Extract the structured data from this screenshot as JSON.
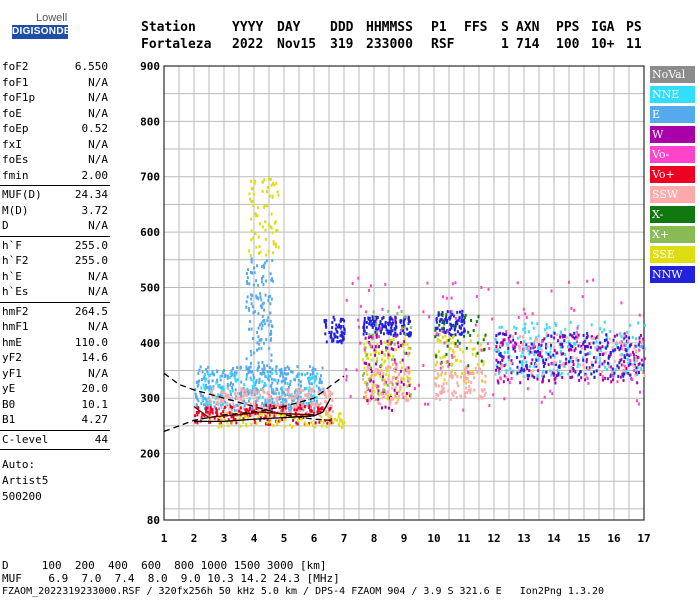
{
  "logo": {
    "top": "Lowell",
    "main": "DIGISONDE"
  },
  "header": {
    "row1": [
      "Station",
      "YYYY",
      "DAY",
      "DDD",
      "HHMMSS",
      "P1",
      "FFS",
      "S",
      "AXN",
      "PPS",
      "IGA",
      "PS"
    ],
    "row2": [
      "Fortaleza",
      "2022",
      "Nov15",
      "319",
      "233000",
      "RSF",
      "",
      "1",
      "714",
      "100",
      "10+",
      "11"
    ]
  },
  "params": {
    "group1": [
      {
        "name": "foF2",
        "value": "6.550"
      },
      {
        "name": "foF1",
        "value": "N/A"
      },
      {
        "name": "foF1p",
        "value": "N/A"
      },
      {
        "name": "foE",
        "value": "N/A"
      },
      {
        "name": "foEp",
        "value": "0.52"
      },
      {
        "name": "fxI",
        "value": "N/A"
      },
      {
        "name": "foEs",
        "value": "N/A"
      },
      {
        "name": "fmin",
        "value": "2.00"
      }
    ],
    "group2": [
      {
        "name": "MUF(D)",
        "value": "24.34"
      },
      {
        "name": "M(D)",
        "value": "3.72"
      },
      {
        "name": "D",
        "value": "N/A"
      }
    ],
    "group3": [
      {
        "name": "h`F",
        "value": "255.0"
      },
      {
        "name": "h`F2",
        "value": "255.0"
      },
      {
        "name": "h`E",
        "value": "N/A"
      },
      {
        "name": "h`Es",
        "value": "N/A"
      }
    ],
    "group4": [
      {
        "name": "hmF2",
        "value": "264.5"
      },
      {
        "name": "hmF1",
        "value": "N/A"
      },
      {
        "name": "hmE",
        "value": "110.0"
      },
      {
        "name": "yF2",
        "value": "14.6"
      },
      {
        "name": "yF1",
        "value": "N/A"
      },
      {
        "name": "yE",
        "value": "20.0"
      },
      {
        "name": "B0",
        "value": "10.1"
      },
      {
        "name": "B1",
        "value": "4.27"
      }
    ],
    "group5": [
      {
        "name": "C-level",
        "value": "44"
      }
    ],
    "auto": [
      "Auto:",
      "Artist5",
      "500200"
    ]
  },
  "legend": [
    {
      "label": "NoVal",
      "color": "#8c8c8c"
    },
    {
      "label": "NNE",
      "color": "#33ddff"
    },
    {
      "label": "E",
      "color": "#55aaee"
    },
    {
      "label": "W",
      "color": "#aa00aa"
    },
    {
      "label": "Vo-",
      "color": "#ff44cc"
    },
    {
      "label": "Vo+",
      "color": "#ee0022"
    },
    {
      "label": "SSW",
      "color": "#ffaaaa"
    },
    {
      "label": "X-",
      "color": "#117711"
    },
    {
      "label": "X+",
      "color": "#88bb55"
    },
    {
      "label": "SSE",
      "color": "#dddd11"
    },
    {
      "label": "NNW",
      "color": "#2222dd"
    }
  ],
  "chart_data": {
    "type": "scatter",
    "xlim": [
      1,
      17
    ],
    "ylim": [
      80,
      900
    ],
    "x_ticks": [
      "1",
      "2",
      "3",
      "4",
      "5",
      "6",
      "7",
      "8",
      "9",
      "10",
      "11",
      "12",
      "13",
      "14",
      "15",
      "16",
      "17"
    ],
    "y_ticks": [
      "80",
      "200",
      "300",
      "400",
      "500",
      "600",
      "700",
      "800",
      "900"
    ],
    "y_tick_values": [
      80,
      200,
      300,
      400,
      500,
      600,
      700,
      800,
      900
    ],
    "grid": true,
    "clusters": [
      {
        "name": "E",
        "xmin": 2.0,
        "xmax": 6.3,
        "ymin": 280,
        "ymax": 360,
        "color": "#55aaee",
        "n": 400
      },
      {
        "name": "E",
        "xmin": 3.7,
        "xmax": 4.6,
        "ymin": 350,
        "ymax": 560,
        "color": "#55aaee",
        "n": 120
      },
      {
        "name": "NNE",
        "xmin": 2.2,
        "xmax": 6.2,
        "ymin": 290,
        "ymax": 350,
        "color": "#33ddff",
        "n": 120
      },
      {
        "name": "SSW",
        "xmin": 2.4,
        "xmax": 6.6,
        "ymin": 270,
        "ymax": 320,
        "color": "#ffaaaa",
        "n": 260
      },
      {
        "name": "Vo+",
        "xmin": 2.0,
        "xmax": 6.6,
        "ymin": 255,
        "ymax": 290,
        "color": "#ee0022",
        "n": 160
      },
      {
        "name": "SSE",
        "xmin": 3.8,
        "xmax": 4.8,
        "ymin": 560,
        "ymax": 700,
        "color": "#dddd11",
        "n": 70
      },
      {
        "name": "SSE",
        "xmin": 2.5,
        "xmax": 7.0,
        "ymin": 250,
        "ymax": 275,
        "color": "#dddd11",
        "n": 90
      },
      {
        "name": "NNW",
        "xmin": 6.3,
        "xmax": 7.0,
        "ymin": 400,
        "ymax": 450,
        "color": "#2222dd",
        "n": 60
      },
      {
        "name": "NNW",
        "xmin": 7.6,
        "xmax": 9.2,
        "ymin": 415,
        "ymax": 450,
        "color": "#2222dd",
        "n": 140
      },
      {
        "name": "SSE",
        "xmin": 7.6,
        "xmax": 9.2,
        "ymin": 300,
        "ymax": 410,
        "color": "#dddd11",
        "n": 120
      },
      {
        "name": "W",
        "xmin": 7.6,
        "xmax": 9.2,
        "ymin": 280,
        "ymax": 420,
        "color": "#aa00aa",
        "n": 80
      },
      {
        "name": "SSW",
        "xmin": 7.6,
        "xmax": 9.2,
        "ymin": 290,
        "ymax": 360,
        "color": "#ffaaaa",
        "n": 90
      },
      {
        "name": "X+",
        "xmin": 7.6,
        "xmax": 9.2,
        "ymin": 300,
        "ymax": 460,
        "color": "#88bb55",
        "n": 40
      },
      {
        "name": "NNW",
        "xmin": 10.0,
        "xmax": 11.0,
        "ymin": 415,
        "ymax": 460,
        "color": "#2222dd",
        "n": 90
      },
      {
        "name": "SSE",
        "xmin": 10.0,
        "xmax": 11.7,
        "ymin": 330,
        "ymax": 420,
        "color": "#dddd11",
        "n": 70
      },
      {
        "name": "SSW",
        "xmin": 10.0,
        "xmax": 11.7,
        "ymin": 300,
        "ymax": 360,
        "color": "#ffaaaa",
        "n": 90
      },
      {
        "name": "X-",
        "xmin": 10.0,
        "xmax": 11.7,
        "ymin": 360,
        "ymax": 460,
        "color": "#117711",
        "n": 40
      },
      {
        "name": "NNE",
        "xmin": 12.0,
        "xmax": 17.0,
        "ymin": 340,
        "ymax": 440,
        "color": "#33ddff",
        "n": 220
      },
      {
        "name": "W",
        "xmin": 12.0,
        "xmax": 17.0,
        "ymin": 330,
        "ymax": 420,
        "color": "#aa00aa",
        "n": 200
      },
      {
        "name": "NNW",
        "xmin": 12.0,
        "xmax": 17.0,
        "ymin": 340,
        "ymax": 420,
        "color": "#2222dd",
        "n": 150
      },
      {
        "name": "SSW",
        "xmin": 12.0,
        "xmax": 17.0,
        "ymin": 340,
        "ymax": 420,
        "color": "#ffaaaa",
        "n": 90
      },
      {
        "name": "Vo-",
        "xmin": 7.0,
        "xmax": 17.0,
        "ymin": 280,
        "ymax": 520,
        "color": "#ff44cc",
        "n": 120
      }
    ],
    "traces": [
      {
        "style": "dashed",
        "color": "#000000",
        "points": [
          [
            1.0,
            240
          ],
          [
            1.5,
            250
          ],
          [
            2.0,
            260
          ],
          [
            3.0,
            270
          ],
          [
            4.0,
            275
          ],
          [
            5.0,
            285
          ],
          [
            6.0,
            300
          ],
          [
            6.5,
            320
          ],
          [
            7.0,
            340
          ]
        ]
      },
      {
        "style": "dashed",
        "color": "#000000",
        "points": [
          [
            1.0,
            345
          ],
          [
            1.5,
            325
          ],
          [
            2.0,
            315
          ],
          [
            3.0,
            300
          ],
          [
            4.0,
            285
          ],
          [
            5.0,
            270
          ],
          [
            6.0,
            262
          ],
          [
            6.55,
            260
          ]
        ]
      },
      {
        "style": "solid",
        "color": "#000000",
        "points": [
          [
            2.0,
            258
          ],
          [
            3.0,
            258
          ],
          [
            4.0,
            262
          ],
          [
            5.0,
            265
          ],
          [
            6.0,
            268
          ],
          [
            6.3,
            275
          ],
          [
            6.55,
            300
          ]
        ]
      },
      {
        "style": "solid",
        "color": "#660000",
        "points": [
          [
            2.0,
            285
          ],
          [
            2.5,
            265
          ],
          [
            3.0,
            268
          ],
          [
            3.5,
            270
          ],
          [
            4.2,
            275
          ],
          [
            5.0,
            272
          ],
          [
            6.0,
            270
          ]
        ]
      }
    ]
  },
  "footer": {
    "line1": "D     100  200  400  600  800 1000 1500 3000 [km]",
    "line2": "MUF    6.9  7.0  7.4  8.0  9.0 10.3 14.2 24.3 [MHz]",
    "line3": "FZAOM_2022319233000.RSF / 320fx256h 50 kHz 5.0 km / DPS-4 FZAOM 904 / 3.9 S 321.6 E   Ion2Png 1.3.20"
  }
}
